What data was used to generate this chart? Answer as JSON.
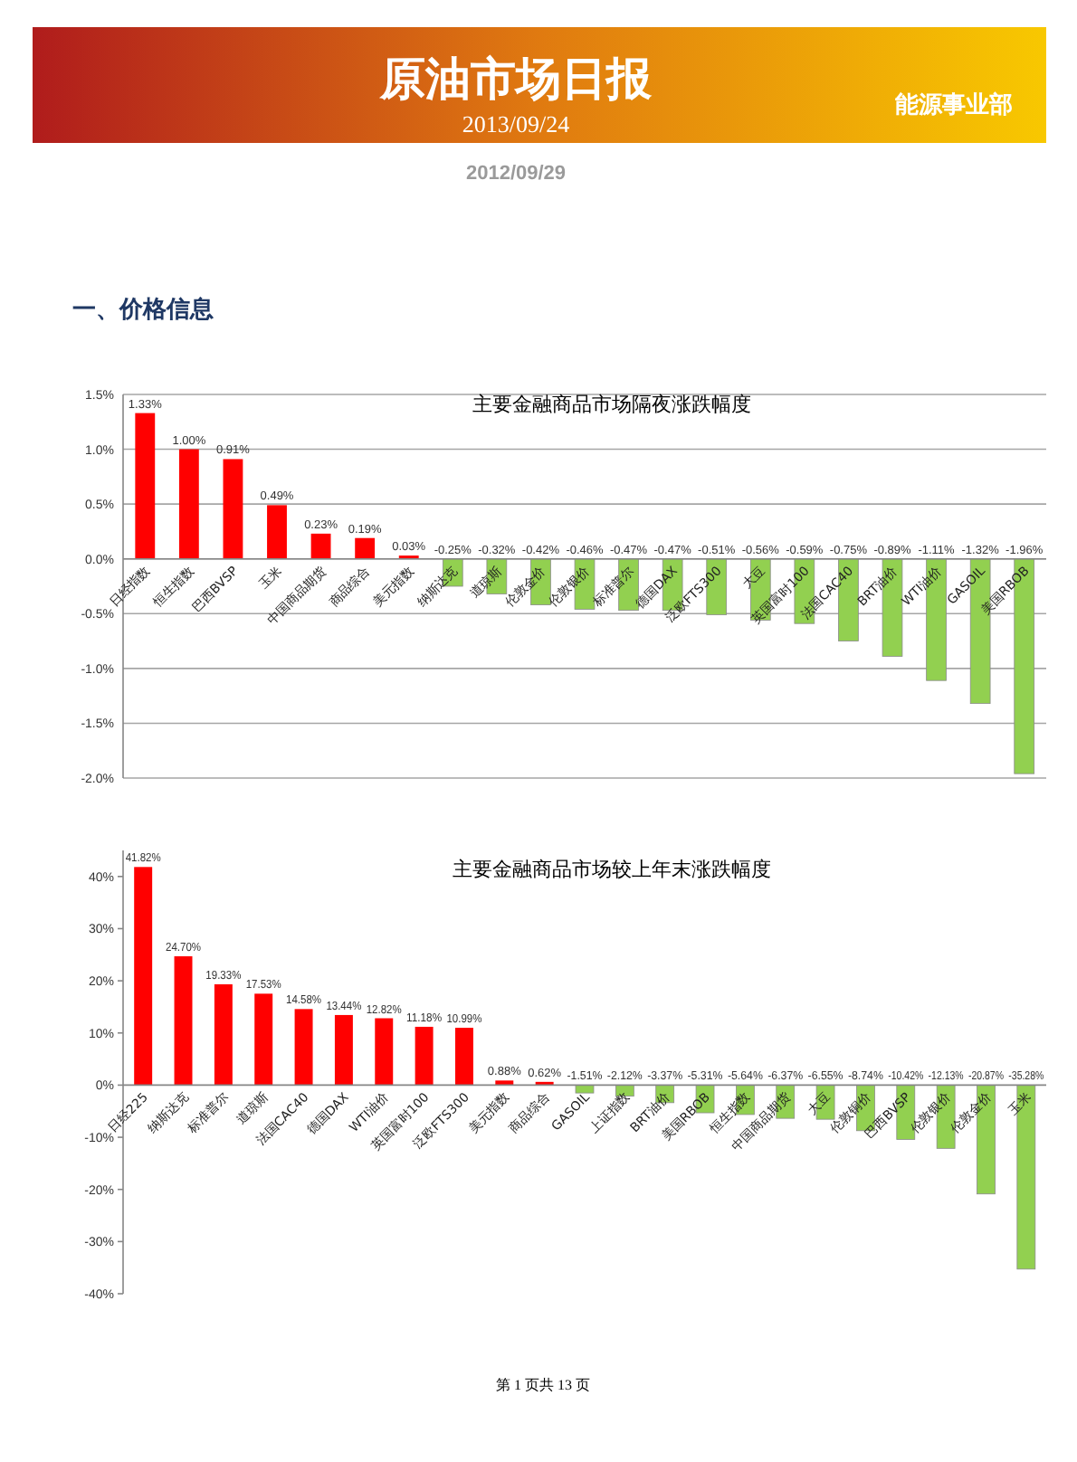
{
  "chart_data": [
    {
      "type": "bar",
      "title": "主要金融商品市场隔夜涨跌幅度",
      "grid": "y",
      "annotations": [
        "原油市场日报",
        "2013/09/24",
        "能源事业部",
        "2012/09/29",
        "一、价格信息"
      ],
      "categories": [
        "日经指数",
        "恒生指数",
        "巴西BVSP",
        "玉米",
        "中国商品期货",
        "商品综合",
        "美元指数",
        "纳斯达克",
        "道琼斯",
        "伦敦金价",
        "伦敦银价",
        "标准普尔",
        "德国DAX",
        "泛欧FTS300",
        "大豆",
        "英国富时100",
        "法国CAC40",
        "BRT油价",
        "WTI油价",
        "GASOIL",
        "美国RBOB"
      ],
      "values": [
        1.33,
        1.0,
        0.91,
        0.49,
        0.23,
        0.19,
        0.03,
        -0.25,
        -0.32,
        -0.42,
        -0.46,
        -0.47,
        -0.47,
        -0.51,
        -0.56,
        -0.59,
        -0.75,
        -0.89,
        -1.11,
        -1.32,
        -1.96
      ],
      "value_labels": [
        "1.33%",
        "1.00%",
        "0.91%",
        "0.49%",
        "0.23%",
        "0.19%",
        "0.03%",
        "-0.25%",
        "-0.32%",
        "-0.42%",
        "-0.46%",
        "-0.47%",
        "-0.47%",
        "-0.51%",
        "-0.56%",
        "-0.59%",
        "-0.75%",
        "-0.89%",
        "-1.11%",
        "-1.32%",
        "-1.96%"
      ],
      "colors": [
        "#ff0000",
        "#ff0000",
        "#ff0000",
        "#ff0000",
        "#ff0000",
        "#ff0000",
        "#ff0000",
        "#92d050",
        "#92d050",
        "#92d050",
        "#92d050",
        "#92d050",
        "#92d050",
        "#92d050",
        "#92d050",
        "#92d050",
        "#92d050",
        "#92d050",
        "#92d050",
        "#92d050",
        "#92d050"
      ],
      "ylim": [
        -2.0,
        1.5
      ],
      "yticks": [
        {
          "value": -2.0,
          "label": "-2.0%"
        },
        {
          "value": -1.5,
          "label": "-1.5%"
        },
        {
          "value": -1.0,
          "label": "-1.0%"
        },
        {
          "value": -0.5,
          "label": "-0.5%"
        },
        {
          "value": 0,
          "label": "0.0%"
        },
        {
          "value": 0.5,
          "label": "0.5%"
        },
        {
          "value": 1.0,
          "label": "1.0%"
        },
        {
          "value": 1.5,
          "label": "1.5%"
        }
      ]
    },
    {
      "type": "bar",
      "title": "主要金融商品市场较上年末涨跌幅度",
      "annotations": [
        "第 1 页共 13 页"
      ],
      "categories": [
        "日经225",
        "纳斯达克",
        "标准普尔",
        "道琼斯",
        "法国CAC40",
        "德国DAX",
        "WTI油价",
        "英国富时100",
        "泛欧FTS300",
        "美元指数",
        "商品综合",
        "GASOIL",
        "上证指数",
        "BRT油价",
        "美国RBOB",
        "恒生指数",
        "中国商品期货",
        "大豆",
        "伦敦铜价",
        "巴西BVSP",
        "伦敦银价",
        "伦敦金价",
        "玉米"
      ],
      "values": [
        41.82,
        24.7,
        19.33,
        17.53,
        14.58,
        13.44,
        12.82,
        11.18,
        10.99,
        0.88,
        0.62,
        -1.51,
        -2.12,
        -3.37,
        -5.31,
        -5.64,
        -6.37,
        -6.55,
        -8.74,
        -10.42,
        -12.13,
        -20.87,
        -35.28
      ],
      "value_labels": [
        "41.82%",
        "24.70%",
        "19.33%",
        "17.53%",
        "14.58%",
        "13.44%",
        "12.82%",
        "11.18%",
        "10.99%",
        "0.88%",
        "0.62%",
        "-1.51%",
        "-2.12%",
        "-3.37%",
        "-5.31%",
        "-5.64%",
        "-6.37%",
        "-6.55%",
        "-8.74%",
        "-10.42%",
        "-12.13%",
        "-20.87%",
        "-35.28%"
      ],
      "colors": [
        "#ff0000",
        "#ff0000",
        "#ff0000",
        "#ff0000",
        "#ff0000",
        "#ff0000",
        "#ff0000",
        "#ff0000",
        "#ff0000",
        "#ff0000",
        "#ff0000",
        "#92d050",
        "#92d050",
        "#92d050",
        "#92d050",
        "#92d050",
        "#92d050",
        "#92d050",
        "#92d050",
        "#92d050",
        "#92d050",
        "#92d050",
        "#92d050"
      ],
      "ylim": [
        -40,
        45
      ],
      "yticks": [
        {
          "value": -40,
          "label": "-40%"
        },
        {
          "value": -30,
          "label": "-30%"
        },
        {
          "value": -20,
          "label": "-20%"
        },
        {
          "value": -10,
          "label": "-10%"
        },
        {
          "value": 0,
          "label": "0%"
        },
        {
          "value": 10,
          "label": "10%"
        },
        {
          "value": 20,
          "label": "20%"
        },
        {
          "value": 30,
          "label": "30%"
        },
        {
          "value": 40,
          "label": "40%"
        }
      ]
    }
  ]
}
